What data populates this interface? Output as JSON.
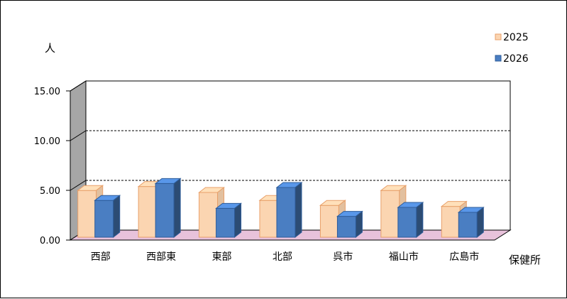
{
  "chart_data": {
    "type": "bar",
    "title": "",
    "xlabel": "保健所",
    "ylabel": "人",
    "categories": [
      "西部",
      "西部東",
      "東部",
      "北部",
      "呉市",
      "福山市",
      "広島市"
    ],
    "series": [
      {
        "name": "2025",
        "color": "#FBD5B1",
        "values": [
          4.7,
          5.1,
          4.5,
          3.7,
          3.2,
          4.7,
          3.1
        ]
      },
      {
        "name": "2026",
        "color": "#4A7EC2",
        "values": [
          3.7,
          5.4,
          2.9,
          5.0,
          2.1,
          3.0,
          2.5
        ]
      }
    ],
    "ylim": [
      0,
      15
    ],
    "yticks": [
      "0.00",
      "5.00",
      "10.00",
      "15.00"
    ],
    "ytick_values": [
      0,
      5,
      10,
      15
    ],
    "grid": true,
    "legend": "top-right"
  }
}
